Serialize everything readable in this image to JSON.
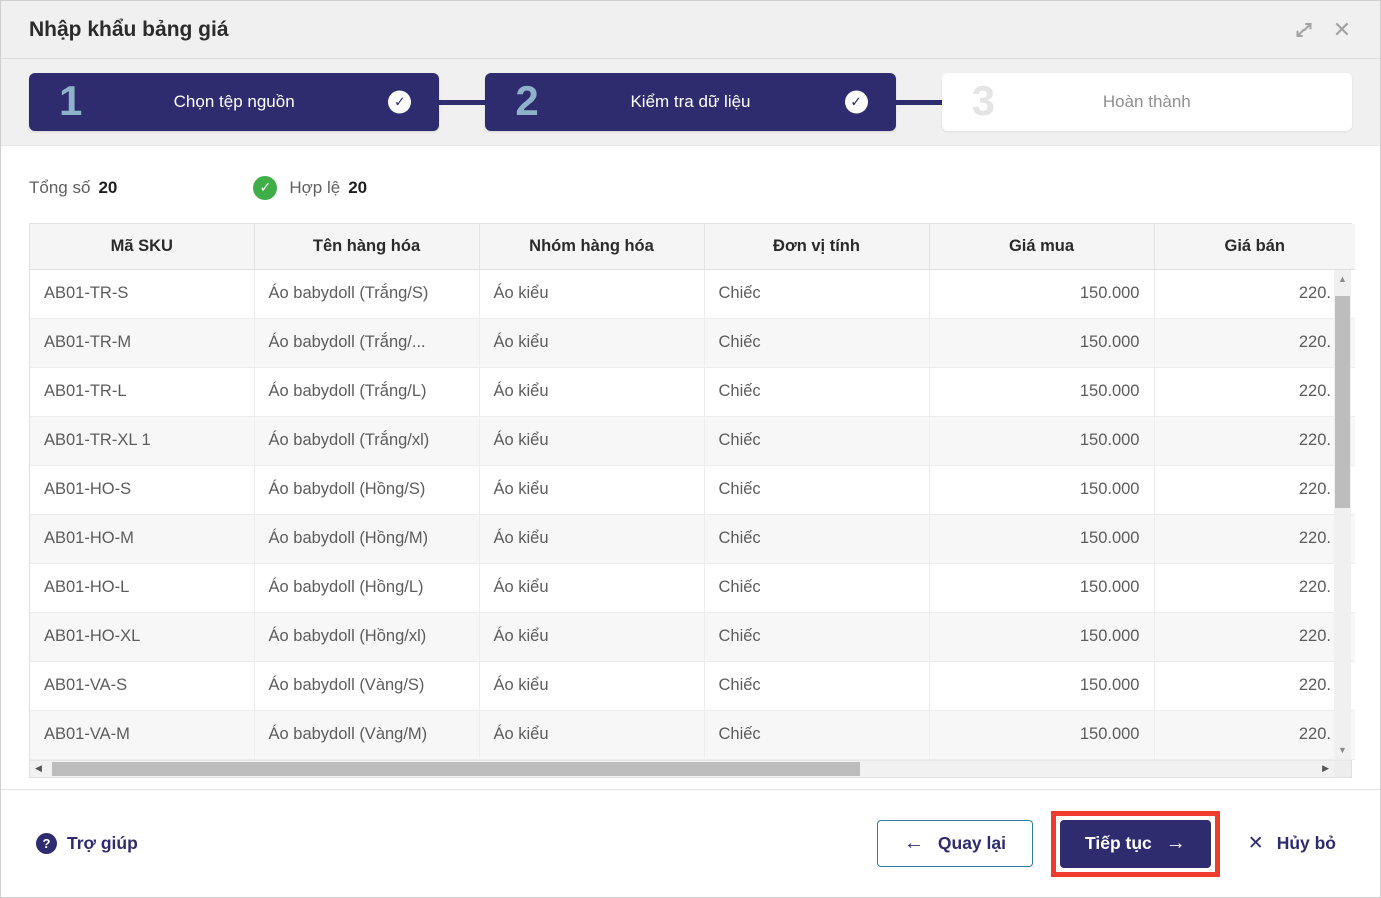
{
  "colors": {
    "navy": "#2e2c6f",
    "step_number": "#8fb2cb",
    "green": "#3fae49",
    "red": "#f23b2f",
    "back_border": "#2b7f9c"
  },
  "dialog": {
    "title": "Nhập khẩu bảng giá"
  },
  "steps": [
    {
      "number": "1",
      "label": "Chọn tệp nguồn",
      "completed": true
    },
    {
      "number": "2",
      "label": "Kiểm tra dữ liệu",
      "completed": true
    },
    {
      "number": "3",
      "label": "Hoàn thành",
      "completed": false
    }
  ],
  "summary": {
    "total_label": "Tổng số",
    "total_value": "20",
    "valid_label": "Hợp lệ",
    "valid_value": "20"
  },
  "table": {
    "headers": [
      "Mã SKU",
      "Tên hàng hóa",
      "Nhóm hàng hóa",
      "Đơn vị tính",
      "Giá mua",
      "Giá bán"
    ],
    "rows": [
      [
        "AB01-TR-S",
        "Áo babydoll (Trắng/S)",
        "Áo kiểu",
        "Chiếc",
        "150.000",
        "220."
      ],
      [
        "AB01-TR-M",
        "Áo babydoll (Trắng/...",
        "Áo kiểu",
        "Chiếc",
        "150.000",
        "220."
      ],
      [
        "AB01-TR-L",
        "Áo babydoll (Trắng/L)",
        "Áo kiểu",
        "Chiếc",
        "150.000",
        "220."
      ],
      [
        "AB01-TR-XL 1",
        "Áo babydoll (Trắng/xl)",
        "Áo kiểu",
        "Chiếc",
        "150.000",
        "220."
      ],
      [
        "AB01-HO-S",
        "Áo babydoll (Hồng/S)",
        "Áo kiểu",
        "Chiếc",
        "150.000",
        "220."
      ],
      [
        "AB01-HO-M",
        "Áo babydoll (Hồng/M)",
        "Áo kiểu",
        "Chiếc",
        "150.000",
        "220."
      ],
      [
        "AB01-HO-L",
        "Áo babydoll (Hồng/L)",
        "Áo kiểu",
        "Chiếc",
        "150.000",
        "220."
      ],
      [
        "AB01-HO-XL",
        "Áo babydoll (Hồng/xl)",
        "Áo kiểu",
        "Chiếc",
        "150.000",
        "220."
      ],
      [
        "AB01-VA-S",
        "Áo babydoll (Vàng/S)",
        "Áo kiểu",
        "Chiếc",
        "150.000",
        "220."
      ],
      [
        "AB01-VA-M",
        "Áo babydoll (Vàng/M)",
        "Áo kiểu",
        "Chiếc",
        "150.000",
        "220."
      ]
    ]
  },
  "footer": {
    "help_label": "Trợ giúp",
    "back_label": "Quay lại",
    "continue_label": "Tiếp tục",
    "cancel_label": "Hủy bỏ"
  },
  "icons": {
    "check": "✓",
    "arrow_left": "←",
    "arrow_right": "→",
    "close": "✕",
    "question": "?"
  }
}
